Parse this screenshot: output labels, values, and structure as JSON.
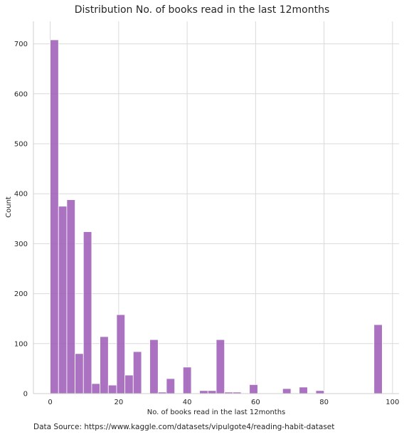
{
  "chart_data": {
    "type": "bar",
    "title": "Distribution No. of books read in the last 12months",
    "xlabel": "No. of books read in the last 12months",
    "ylabel": "Count",
    "xlim": [
      -4.9,
      101.9
    ],
    "ylim": [
      0,
      745
    ],
    "xticks": [
      0,
      20,
      40,
      60,
      80,
      100
    ],
    "yticks": [
      0,
      100,
      200,
      300,
      400,
      500,
      600,
      700
    ],
    "grid": true,
    "bar_color": "#9b59b6",
    "bin_width": 2.425,
    "bin_start": 0,
    "bins": [
      {
        "x0": 0.0,
        "x1": 2.425,
        "count": 708
      },
      {
        "x0": 2.425,
        "x1": 4.85,
        "count": 375
      },
      {
        "x0": 4.85,
        "x1": 7.275,
        "count": 388
      },
      {
        "x0": 7.275,
        "x1": 9.7,
        "count": 80
      },
      {
        "x0": 9.7,
        "x1": 12.125,
        "count": 324
      },
      {
        "x0": 12.125,
        "x1": 14.55,
        "count": 20
      },
      {
        "x0": 14.55,
        "x1": 16.975,
        "count": 114
      },
      {
        "x0": 16.975,
        "x1": 19.4,
        "count": 17
      },
      {
        "x0": 19.4,
        "x1": 21.825,
        "count": 158
      },
      {
        "x0": 21.825,
        "x1": 24.25,
        "count": 37
      },
      {
        "x0": 24.25,
        "x1": 26.675,
        "count": 84
      },
      {
        "x0": 26.675,
        "x1": 29.1,
        "count": 0
      },
      {
        "x0": 29.1,
        "x1": 31.525,
        "count": 108
      },
      {
        "x0": 31.525,
        "x1": 33.95,
        "count": 3
      },
      {
        "x0": 33.95,
        "x1": 36.375,
        "count": 30
      },
      {
        "x0": 36.375,
        "x1": 38.8,
        "count": 0
      },
      {
        "x0": 38.8,
        "x1": 41.225,
        "count": 53
      },
      {
        "x0": 41.225,
        "x1": 43.65,
        "count": 0
      },
      {
        "x0": 43.65,
        "x1": 46.075,
        "count": 6
      },
      {
        "x0": 46.075,
        "x1": 48.5,
        "count": 6
      },
      {
        "x0": 48.5,
        "x1": 50.925,
        "count": 108
      },
      {
        "x0": 50.925,
        "x1": 53.35,
        "count": 3
      },
      {
        "x0": 53.35,
        "x1": 55.775,
        "count": 3
      },
      {
        "x0": 55.775,
        "x1": 58.2,
        "count": 0
      },
      {
        "x0": 58.2,
        "x1": 60.625,
        "count": 18
      },
      {
        "x0": 60.625,
        "x1": 63.05,
        "count": 0
      },
      {
        "x0": 63.05,
        "x1": 65.475,
        "count": 0
      },
      {
        "x0": 65.475,
        "x1": 67.9,
        "count": 0
      },
      {
        "x0": 67.9,
        "x1": 70.325,
        "count": 10
      },
      {
        "x0": 70.325,
        "x1": 72.75,
        "count": 0
      },
      {
        "x0": 72.75,
        "x1": 75.175,
        "count": 13
      },
      {
        "x0": 75.175,
        "x1": 77.6,
        "count": 0
      },
      {
        "x0": 77.6,
        "x1": 80.025,
        "count": 6
      },
      {
        "x0": 80.025,
        "x1": 82.45,
        "count": 0
      },
      {
        "x0": 82.45,
        "x1": 84.875,
        "count": 0
      },
      {
        "x0": 84.875,
        "x1": 87.3,
        "count": 0
      },
      {
        "x0": 87.3,
        "x1": 89.725,
        "count": 0
      },
      {
        "x0": 89.725,
        "x1": 92.15,
        "count": 0
      },
      {
        "x0": 92.15,
        "x1": 94.575,
        "count": 0
      },
      {
        "x0": 94.575,
        "x1": 97.0,
        "count": 138
      }
    ]
  },
  "footer": {
    "source": "Data Source: https://www.kaggle.com/datasets/vipulgote4/reading-habit-dataset"
  }
}
